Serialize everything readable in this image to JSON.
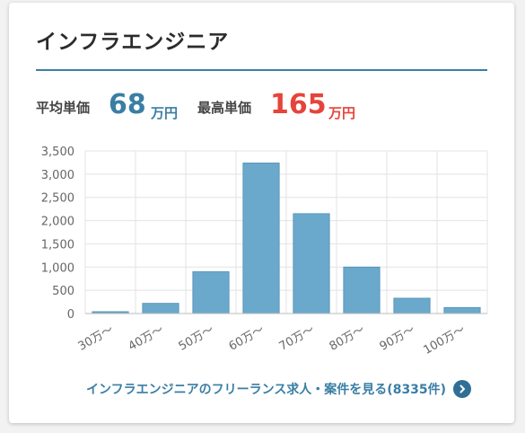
{
  "card": {
    "title": "インフラエンジニア"
  },
  "stats": {
    "average": {
      "label": "平均単価",
      "value": "68",
      "unit": "万円",
      "color": "#3a7ea5"
    },
    "maximum": {
      "label": "最高単価",
      "value": "165",
      "unit": "万円",
      "color": "#e6443a"
    }
  },
  "chart_data": {
    "type": "bar",
    "categories": [
      "30万〜",
      "40万〜",
      "50万〜",
      "60万〜",
      "70万〜",
      "80万〜",
      "90万〜",
      "100万〜"
    ],
    "values": [
      40,
      220,
      900,
      3240,
      2150,
      1000,
      330,
      130
    ],
    "yticks": [
      "0",
      "500",
      "1,000",
      "1,500",
      "2,000",
      "2,500",
      "3,000",
      "3,500"
    ],
    "ylim": [
      0,
      3500
    ],
    "grid": true,
    "bar_color": "#6aa9cb",
    "bar_edge_color": "#4f8fb5",
    "title": "",
    "xlabel": "",
    "ylabel": ""
  },
  "link": {
    "label": "インフラエンジニアのフリーランス求人・案件を見る(8335件)",
    "icon": "chevron-right-icon"
  }
}
